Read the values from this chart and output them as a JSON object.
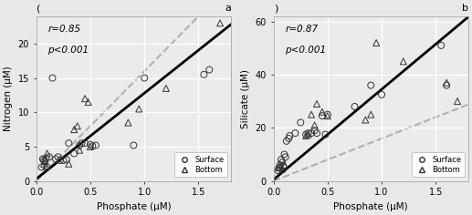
{
  "panel_a": {
    "title_left": "(",
    "title_right": "a",
    "xlabel": "Phosphate (μM)",
    "ylabel": "Nitrogen (μM)",
    "r_text": "r=0.85",
    "p_text": "p<0.001",
    "surface_x": [
      0.05,
      0.06,
      0.07,
      0.08,
      0.09,
      0.1,
      0.12,
      0.15,
      0.18,
      0.2,
      0.22,
      0.25,
      0.28,
      0.3,
      0.35,
      0.4,
      0.42,
      0.45,
      0.5,
      0.52,
      0.55,
      0.9,
      1.0,
      1.55,
      1.6
    ],
    "surface_y": [
      2.0,
      3.2,
      3.0,
      2.8,
      3.3,
      2.0,
      3.5,
      15.0,
      3.2,
      3.5,
      3.0,
      3.0,
      3.1,
      5.5,
      4.0,
      5.2,
      5.5,
      5.5,
      5.3,
      5.1,
      5.2,
      5.2,
      15.0,
      15.5,
      16.2
    ],
    "bottom_x": [
      0.07,
      0.08,
      0.09,
      0.1,
      0.3,
      0.35,
      0.38,
      0.4,
      0.45,
      0.48,
      0.5,
      0.85,
      0.95,
      1.2,
      1.7
    ],
    "bottom_y": [
      2.5,
      3.0,
      2.2,
      4.0,
      2.5,
      7.5,
      8.0,
      4.5,
      12.0,
      11.5,
      5.0,
      8.5,
      10.5,
      13.5,
      23.0
    ],
    "fit_slope": 12.5,
    "fit_intercept": 0.3,
    "redfield_slope": 16.0,
    "xlim": [
      0,
      1.8
    ],
    "ylim": [
      0,
      24
    ],
    "yticks": [
      0,
      5,
      10,
      15,
      20
    ],
    "xticks": [
      0.0,
      0.5,
      1.0,
      1.5
    ]
  },
  "panel_b": {
    "title_left": ")",
    "title_right": "b",
    "xlabel": "Phosphate (μM)",
    "ylabel": "Silicate (μM)",
    "r_text": "r=0.87",
    "p_text": "p<0.001",
    "surface_x": [
      0.04,
      0.05,
      0.06,
      0.07,
      0.08,
      0.09,
      0.1,
      0.11,
      0.12,
      0.14,
      0.15,
      0.2,
      0.25,
      0.3,
      0.32,
      0.35,
      0.38,
      0.4,
      0.45,
      0.48,
      0.5,
      0.75,
      0.9,
      1.0,
      1.55,
      1.6
    ],
    "surface_y": [
      4.0,
      5.0,
      6.0,
      8.0,
      7.0,
      5.5,
      10.0,
      9.0,
      15.0,
      16.0,
      17.0,
      18.0,
      22.0,
      17.5,
      18.0,
      18.0,
      19.0,
      18.0,
      24.5,
      17.5,
      25.0,
      28.0,
      36.0,
      32.5,
      51.0,
      36.0
    ],
    "bottom_x": [
      0.05,
      0.07,
      0.08,
      0.1,
      0.3,
      0.32,
      0.35,
      0.38,
      0.4,
      0.45,
      0.5,
      0.85,
      0.9,
      0.95,
      1.2,
      1.6,
      1.7
    ],
    "bottom_y": [
      5.0,
      5.5,
      4.5,
      6.0,
      17.0,
      17.5,
      25.0,
      21.0,
      29.0,
      26.0,
      24.5,
      23.0,
      25.0,
      52.0,
      45.0,
      37.0,
      30.0
    ],
    "fit_slope": 34.0,
    "fit_intercept": 0.5,
    "redfield_slope": 16.0,
    "xlim": [
      0,
      1.8
    ],
    "ylim": [
      0,
      62
    ],
    "yticks": [
      0,
      20,
      40,
      60
    ],
    "xticks": [
      0.0,
      0.5,
      1.0,
      1.5
    ]
  },
  "fig_facecolor": "#e8e8e8",
  "ax_facecolor": "#ebebeb",
  "grid_color": "#ffffff",
  "marker_size": 5,
  "fit_color": "black",
  "redfield_color": "#b0b0b0",
  "annotation_fontsize": 7.5,
  "axis_fontsize": 7.5,
  "tick_fontsize": 7
}
